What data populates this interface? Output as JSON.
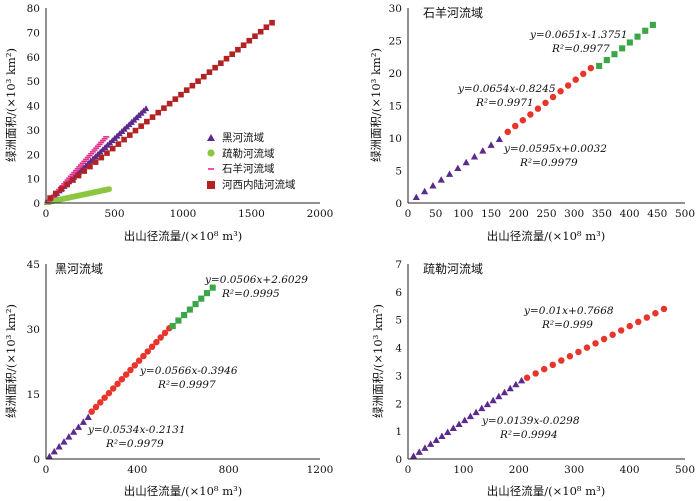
{
  "chart_data": [
    {
      "type": "scatter",
      "title": "",
      "xlabel": "出山径流量/(×10⁸ m³)",
      "ylabel": "绿洲面积/(×10³ km²)",
      "xlim": [
        0,
        2000
      ],
      "ylim": [
        0,
        80
      ],
      "xticks": [
        "0",
        "500",
        "1000",
        "1500",
        "2000"
      ],
      "yticks": [
        "0",
        "10",
        "20",
        "30",
        "40",
        "50",
        "60",
        "70",
        "80"
      ],
      "legend_position": "right-center",
      "series": [
        {
          "name": "黑河流域",
          "marker": "triangle",
          "color": "#5b2a8c",
          "x_range": [
            10,
            730
          ],
          "slope": 0.0534,
          "intercept": -0.2131,
          "n": 42
        },
        {
          "name": "疏勒河流域",
          "marker": "circle",
          "color": "#8cc63f",
          "x_range": [
            10,
            460
          ],
          "slope": 0.0119,
          "intercept": 0.2,
          "n": 38
        },
        {
          "name": "石羊河流域",
          "marker": "dash",
          "color": "#e02e8a",
          "x_range": [
            10,
            440
          ],
          "slope": 0.0628,
          "intercept": -0.5,
          "n": 36
        },
        {
          "name": "河西内陆河流域",
          "marker": "square",
          "color": "#b22222",
          "x_range": [
            30,
            1650
          ],
          "slope": 0.0444,
          "intercept": 0.7,
          "n": 40
        }
      ]
    },
    {
      "type": "scatter",
      "title": "石羊河流域",
      "xlabel": "出山径流量/(×10⁸ m³)",
      "ylabel": "绿洲面积/(×10³ km²)",
      "xlim": [
        0,
        500
      ],
      "ylim": [
        0,
        30
      ],
      "xticks": [
        "0",
        "50",
        "100",
        "150",
        "200",
        "250",
        "300",
        "350",
        "400",
        "450",
        "500"
      ],
      "yticks": [
        "0",
        "5",
        "10",
        "15",
        "20",
        "25",
        "30"
      ],
      "segments": [
        {
          "marker": "triangle",
          "color": "#5b2a8c",
          "x_range": [
            15,
            165
          ],
          "n": 11,
          "slope": 0.0595,
          "intercept": 0.0032,
          "equation": "y=0.0595x+0.0032",
          "r2": "R²=0.9979"
        },
        {
          "marker": "circle",
          "color": "#e8352b",
          "x_range": [
            180,
            330
          ],
          "n": 12,
          "slope": 0.0654,
          "intercept": -0.8245,
          "equation": "y=0.0654x-0.8245",
          "r2": "R²=0.9971"
        },
        {
          "marker": "square",
          "color": "#3aa645",
          "x_range": [
            345,
            442
          ],
          "n": 8,
          "slope": 0.0651,
          "intercept": -1.3751,
          "equation": "y=0.0651x-1.3751",
          "r2": "R²=0.9977"
        }
      ]
    },
    {
      "type": "scatter",
      "title": "黑河流域",
      "xlabel": "出山径流量/(×10⁸ m³)",
      "ylabel": "绿洲面积/(×10³ km²)",
      "xlim": [
        0,
        1200
      ],
      "ylim": [
        0,
        45
      ],
      "xticks": [
        "0",
        "400",
        "800",
        "1200"
      ],
      "yticks": [
        "0",
        "15",
        "30",
        "45"
      ],
      "segments": [
        {
          "marker": "triangle",
          "color": "#5b2a8c",
          "x_range": [
            15,
            185
          ],
          "n": 9,
          "slope": 0.0534,
          "intercept": -0.2131,
          "equation": "y=0.0534x-0.2131",
          "r2": "R²=0.9979"
        },
        {
          "marker": "circle",
          "color": "#e8352b",
          "x_range": [
            200,
            540
          ],
          "n": 19,
          "slope": 0.0566,
          "intercept": -0.3946,
          "equation": "y=0.0566x-0.3946",
          "r2": "R²=0.9997"
        },
        {
          "marker": "square",
          "color": "#3aa645",
          "x_range": [
            555,
            730
          ],
          "n": 8,
          "slope": 0.0506,
          "intercept": 2.6029,
          "equation": "y=0.0506x+2.6029",
          "r2": "R²=0.9995"
        }
      ]
    },
    {
      "type": "scatter",
      "title": "疏勒河流域",
      "xlabel": "出山径流量/(×10⁸ m³)",
      "ylabel": "绿洲面积/(×10³ km²)",
      "xlim": [
        0,
        500
      ],
      "ylim": [
        0,
        7
      ],
      "xticks": [
        "0",
        "100",
        "200",
        "300",
        "400",
        "500"
      ],
      "yticks": [
        "0",
        "1",
        "2",
        "3",
        "4",
        "5",
        "6",
        "7"
      ],
      "segments": [
        {
          "marker": "triangle",
          "color": "#5b2a8c",
          "x_range": [
            10,
            205
          ],
          "n": 20,
          "slope": 0.0139,
          "intercept": -0.0298,
          "equation": "y=0.0139x-0.0298",
          "r2": "R²=0.9994"
        },
        {
          "marker": "circle",
          "color": "#e8352b",
          "x_range": [
            215,
            462
          ],
          "n": 17,
          "slope": 0.01,
          "intercept": 0.7668,
          "equation": "y=0.01x+0.7668",
          "r2": "R²=0.999"
        }
      ]
    }
  ]
}
